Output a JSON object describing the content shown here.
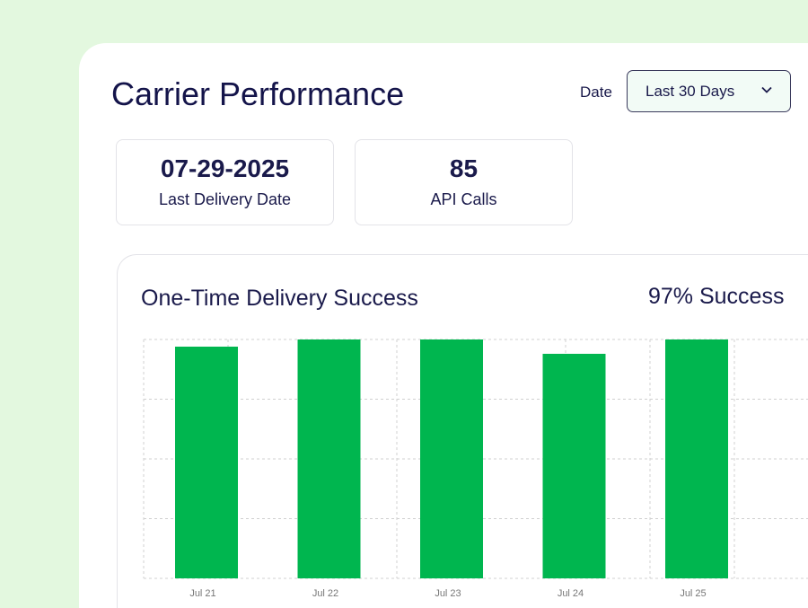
{
  "header": {
    "title": "Carrier Performance",
    "date_label": "Date",
    "date_value": "Last 30 Days"
  },
  "stats": [
    {
      "value": "07-29-2025",
      "label": "Last Delivery Date"
    },
    {
      "value": "85",
      "label": "API Calls"
    }
  ],
  "chart_card": {
    "title": "One-Time Delivery Success",
    "summary": "97% Success"
  },
  "colors": {
    "bar": "#00b64f",
    "background": "#e3f8df"
  },
  "chart_data": {
    "type": "bar",
    "title": "One-Time Delivery Success",
    "categories": [
      "Jul 21",
      "Jul 22",
      "Jul 23",
      "Jul 24",
      "Jul 25"
    ],
    "values": [
      97,
      100,
      100,
      94,
      100
    ],
    "ylim": [
      0,
      100
    ],
    "grid": true,
    "xlabel": "",
    "ylabel": ""
  }
}
